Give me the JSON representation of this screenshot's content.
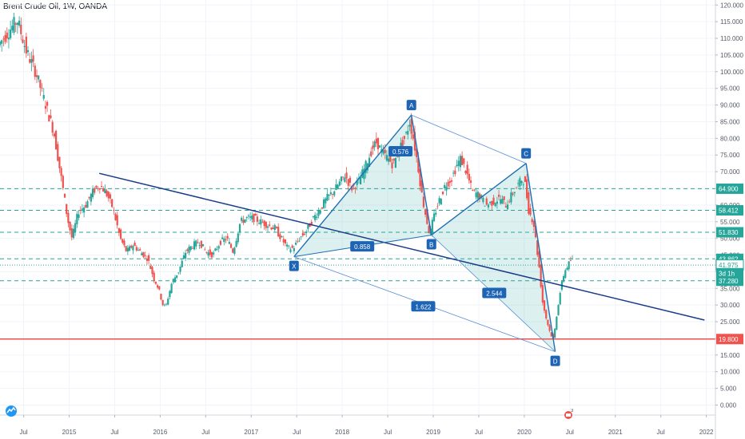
{
  "header": {
    "title": "Brent Crude Oil, 1W, OANDA"
  },
  "chart_data": {
    "type": "candlestick",
    "title": "Brent Crude Oil, 1W, OANDA",
    "y_ticks": [
      "120.000",
      "115.000",
      "110.000",
      "105.000",
      "100.000",
      "95.000",
      "90.000",
      "85.000",
      "80.000",
      "75.000",
      "70.000",
      "65.000",
      "60.000",
      "55.000",
      "50.000",
      "45.000",
      "40.000",
      "35.000",
      "30.000",
      "25.000",
      "20.000",
      "15.000",
      "10.000",
      "5.000",
      "0.000"
    ],
    "y_tick_values": [
      120,
      115,
      110,
      105,
      100,
      95,
      90,
      85,
      80,
      75,
      70,
      65,
      60,
      55,
      50,
      45,
      40,
      35,
      30,
      25,
      20,
      15,
      10,
      5,
      0
    ],
    "ylim": [
      -3,
      121.5
    ],
    "x_ticks": [
      {
        "label": "Jul",
        "t": 2014.5
      },
      {
        "label": "2015",
        "t": 2015.0
      },
      {
        "label": "Jul",
        "t": 2015.5
      },
      {
        "label": "2016",
        "t": 2016.0
      },
      {
        "label": "Jul",
        "t": 2016.5
      },
      {
        "label": "2017",
        "t": 2017.0
      },
      {
        "label": "Jul",
        "t": 2017.5
      },
      {
        "label": "2018",
        "t": 2018.0
      },
      {
        "label": "Jul",
        "t": 2018.5
      },
      {
        "label": "2019",
        "t": 2019.0
      },
      {
        "label": "Jul",
        "t": 2019.5
      },
      {
        "label": "2020",
        "t": 2020.0
      },
      {
        "label": "Jul",
        "t": 2020.5
      },
      {
        "label": "2021",
        "t": 2021.0
      },
      {
        "label": "Jul",
        "t": 2021.5
      },
      {
        "label": "2022",
        "t": 2022.0
      }
    ],
    "xlim": [
      2014.24,
      2022.1
    ],
    "price_path": [
      [
        2014.24,
        108
      ],
      [
        2014.35,
        112
      ],
      [
        2014.45,
        115.5
      ],
      [
        2014.55,
        106
      ],
      [
        2014.65,
        100
      ],
      [
        2014.75,
        91
      ],
      [
        2014.85,
        82
      ],
      [
        2014.95,
        65
      ],
      [
        2015.0,
        56
      ],
      [
        2015.05,
        50
      ],
      [
        2015.12,
        58
      ],
      [
        2015.2,
        60
      ],
      [
        2015.28,
        64
      ],
      [
        2015.35,
        66
      ],
      [
        2015.42,
        64
      ],
      [
        2015.5,
        59
      ],
      [
        2015.58,
        50
      ],
      [
        2015.65,
        46
      ],
      [
        2015.72,
        48
      ],
      [
        2015.8,
        46
      ],
      [
        2015.88,
        44
      ],
      [
        2015.95,
        38
      ],
      [
        2016.0,
        35
      ],
      [
        2016.05,
        30
      ],
      [
        2016.08,
        29.5
      ],
      [
        2016.15,
        37
      ],
      [
        2016.22,
        40
      ],
      [
        2016.3,
        46
      ],
      [
        2016.38,
        48
      ],
      [
        2016.45,
        49
      ],
      [
        2016.52,
        46
      ],
      [
        2016.6,
        45
      ],
      [
        2016.68,
        49
      ],
      [
        2016.75,
        50
      ],
      [
        2016.82,
        46
      ],
      [
        2016.9,
        55
      ],
      [
        2016.97,
        56
      ],
      [
        2017.05,
        56
      ],
      [
        2017.12,
        55
      ],
      [
        2017.2,
        54
      ],
      [
        2017.28,
        53
      ],
      [
        2017.35,
        50
      ],
      [
        2017.42,
        47
      ],
      [
        2017.48,
        47
      ],
      [
        2017.55,
        50
      ],
      [
        2017.62,
        52
      ],
      [
        2017.7,
        56
      ],
      [
        2017.78,
        59
      ],
      [
        2017.85,
        62
      ],
      [
        2017.92,
        64
      ],
      [
        2018.0,
        67
      ],
      [
        2018.05,
        69
      ],
      [
        2018.12,
        65
      ],
      [
        2018.2,
        67
      ],
      [
        2018.28,
        72
      ],
      [
        2018.35,
        77
      ],
      [
        2018.4,
        79
      ],
      [
        2018.45,
        76
      ],
      [
        2018.52,
        74
      ],
      [
        2018.58,
        72
      ],
      [
        2018.65,
        77
      ],
      [
        2018.72,
        81
      ],
      [
        2018.76,
        85
      ],
      [
        2018.8,
        80
      ],
      [
        2018.85,
        72
      ],
      [
        2018.9,
        62
      ],
      [
        2018.95,
        55
      ],
      [
        2018.98,
        51
      ],
      [
        2019.02,
        56
      ],
      [
        2019.08,
        61
      ],
      [
        2019.15,
        66
      ],
      [
        2019.22,
        68
      ],
      [
        2019.28,
        72
      ],
      [
        2019.32,
        74
      ],
      [
        2019.38,
        70
      ],
      [
        2019.45,
        64
      ],
      [
        2019.52,
        63
      ],
      [
        2019.6,
        60
      ],
      [
        2019.68,
        61
      ],
      [
        2019.75,
        62
      ],
      [
        2019.82,
        60
      ],
      [
        2019.88,
        63
      ],
      [
        2019.95,
        66
      ],
      [
        2020.0,
        68
      ],
      [
        2020.03,
        66
      ],
      [
        2020.07,
        58
      ],
      [
        2020.12,
        55
      ],
      [
        2020.18,
        42
      ],
      [
        2020.22,
        31
      ],
      [
        2020.26,
        26
      ],
      [
        2020.3,
        22
      ],
      [
        2020.34,
        19.5
      ],
      [
        2020.38,
        28
      ],
      [
        2020.42,
        35
      ],
      [
        2020.46,
        40
      ],
      [
        2020.5,
        42
      ],
      [
        2020.53,
        43.5
      ]
    ],
    "levels": [
      {
        "value": 64.9,
        "label": "64.900",
        "color": "#26a69a",
        "dash": "5,4"
      },
      {
        "value": 58.412,
        "label": "58.412",
        "color": "#26a69a",
        "dash": "5,4"
      },
      {
        "value": 51.83,
        "label": "51.830",
        "color": "#26a69a",
        "dash": "5,4"
      },
      {
        "value": 43.862,
        "label": "43.862",
        "color": "#26a69a",
        "dash": "5,4"
      },
      {
        "value": 37.28,
        "label": "37.280",
        "color": "#26a69a",
        "dash": "5,4"
      },
      {
        "value": 19.8,
        "label": "19.800",
        "color": "#ef5350",
        "dash": ""
      }
    ],
    "price_tags": [
      {
        "value": 41.975,
        "label": "41.975"
      },
      {
        "value": 39.55,
        "label": "3d 1h"
      }
    ],
    "pattern_points": [
      {
        "name": "X",
        "t": 2017.47,
        "v": 44.5
      },
      {
        "name": "A",
        "t": 2018.76,
        "v": 87.0
      },
      {
        "name": "B",
        "t": 2018.98,
        "v": 51.0
      },
      {
        "name": "C",
        "t": 2020.02,
        "v": 72.5
      },
      {
        "name": "D",
        "t": 2020.34,
        "v": 16.0
      }
    ],
    "ratios": [
      {
        "label": "0.576",
        "t": 2018.64,
        "v": 76.0
      },
      {
        "label": "0.858",
        "t": 2018.22,
        "v": 47.5
      },
      {
        "label": "2.544",
        "t": 2019.67,
        "v": 33.5
      },
      {
        "label": "1.622",
        "t": 2018.89,
        "v": 29.5
      }
    ],
    "trendline": {
      "from": {
        "t": 2015.33,
        "v": 69.5
      },
      "to": {
        "t": 2021.98,
        "v": 25.5
      }
    }
  }
}
